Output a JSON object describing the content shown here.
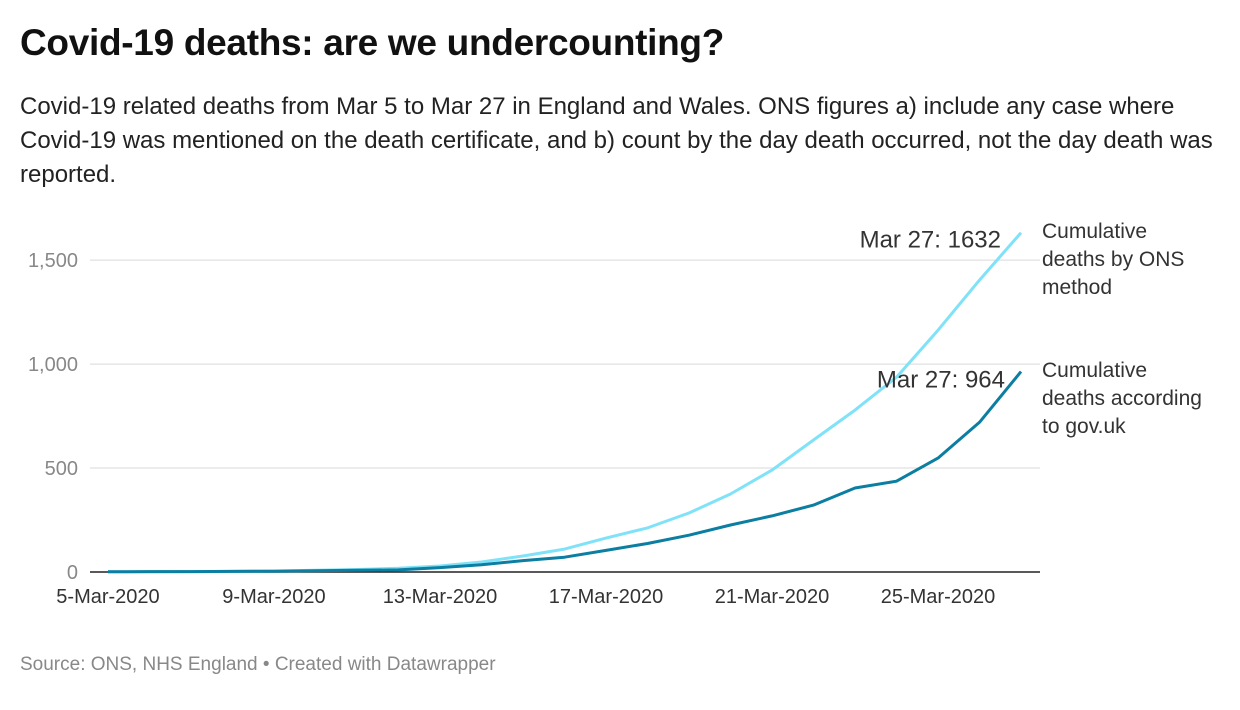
{
  "chart_data": {
    "type": "line",
    "title": "Covid-19 deaths: are we undercounting?",
    "subtitle": "Covid-19 related deaths from Mar 5 to Mar 27 in England and Wales. ONS figures a) include any case where Covid-19 was mentioned on the death certificate, and b) count by the day death occurred, not the day death was reported.",
    "source": "Source: ONS, NHS England • Created with Datawrapper",
    "categories": [
      "5-Mar-2020",
      "6-Mar-2020",
      "7-Mar-2020",
      "8-Mar-2020",
      "9-Mar-2020",
      "10-Mar-2020",
      "11-Mar-2020",
      "12-Mar-2020",
      "13-Mar-2020",
      "14-Mar-2020",
      "15-Mar-2020",
      "16-Mar-2020",
      "17-Mar-2020",
      "18-Mar-2020",
      "19-Mar-2020",
      "20-Mar-2020",
      "21-Mar-2020",
      "22-Mar-2020",
      "23-Mar-2020",
      "24-Mar-2020",
      "25-Mar-2020",
      "26-Mar-2020",
      "27-Mar-2020"
    ],
    "xticks": [
      "5-Mar-2020",
      "9-Mar-2020",
      "13-Mar-2020",
      "17-Mar-2020",
      "21-Mar-2020",
      "25-Mar-2020"
    ],
    "series": [
      {
        "name": "Cumulative deaths by ONS method",
        "color": "#80e2f8",
        "values": [
          1,
          1,
          2,
          3,
          5,
          8,
          12,
          18,
          29,
          48,
          77,
          110,
          163,
          212,
          284,
          375,
          490,
          635,
          779,
          937,
          1163,
          1404,
          1632
        ]
      },
      {
        "name": "Cumulative deaths according to gov.uk",
        "color": "#0b7ea1",
        "values": [
          1,
          2,
          2,
          3,
          4,
          6,
          8,
          10,
          21,
          35,
          55,
          71,
          104,
          137,
          177,
          226,
          270,
          322,
          404,
          437,
          548,
          720,
          964
        ]
      }
    ],
    "annotations": [
      "Mar 27: 1632",
      "Mar 27: 964"
    ],
    "ylim": [
      0,
      1650
    ],
    "yticks": [
      0,
      {
        "value": 500,
        "label": "500"
      },
      {
        "value": 1000,
        "label": "1,000"
      },
      {
        "value": 1500,
        "label": "1,500"
      }
    ],
    "grid": true
  }
}
